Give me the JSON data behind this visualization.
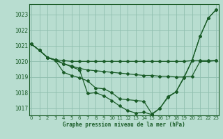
{
  "title": "Graphe pression niveau de la mer (hPa)",
  "bg_color": "#b8ddd0",
  "grid_color": "#90bfaf",
  "line_color": "#1a5c28",
  "xlim": [
    -0.3,
    23.3
  ],
  "ylim": [
    1016.55,
    1023.65
  ],
  "yticks": [
    1017,
    1018,
    1019,
    1020,
    1021,
    1022,
    1023
  ],
  "xticks": [
    0,
    1,
    2,
    3,
    4,
    5,
    6,
    7,
    8,
    9,
    10,
    11,
    12,
    13,
    14,
    15,
    16,
    17,
    18,
    19,
    20,
    21,
    22,
    23
  ],
  "series": [
    [
      1021.1,
      1020.7,
      1020.25,
      1020.1,
      1020.05,
      1020.0,
      1020.0,
      1020.0,
      1020.0,
      1020.0,
      1020.0,
      1020.0,
      1020.0,
      1020.0,
      1020.0,
      1020.0,
      1020.0,
      1020.0,
      1020.0,
      1020.0,
      1020.05,
      1020.05,
      1020.05,
      1020.05
    ],
    [
      1021.1,
      1020.7,
      1020.25,
      1020.1,
      1019.85,
      1019.7,
      1019.55,
      1019.45,
      1019.4,
      1019.35,
      1019.3,
      1019.25,
      1019.2,
      1019.15,
      1019.1,
      1019.1,
      1019.05,
      1019.05,
      1019.0,
      1019.0,
      1019.05,
      1020.0,
      1020.0,
      1020.05
    ],
    [
      1021.1,
      1020.7,
      1020.25,
      1020.05,
      1019.3,
      1019.1,
      1018.95,
      1018.75,
      1018.3,
      1018.25,
      1018.0,
      1017.6,
      1017.55,
      1017.5,
      1017.45,
      1016.65,
      1017.0,
      1017.75,
      1018.05,
      1019.0,
      1020.05,
      1021.6,
      1022.75,
      1023.3
    ],
    [
      1021.1,
      1020.7,
      1020.25,
      1020.05,
      1019.85,
      1019.65,
      1019.45,
      1017.95,
      1018.0,
      1017.8,
      1017.5,
      1017.15,
      1016.85,
      1016.7,
      1016.75,
      1016.6,
      1017.0,
      1017.7,
      1018.05,
      1018.95,
      1020.05,
      1021.6,
      1022.75,
      1023.3
    ]
  ]
}
